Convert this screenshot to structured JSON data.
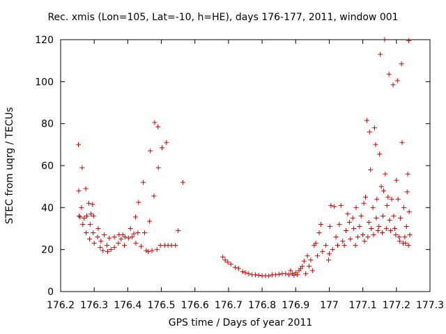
{
  "chart_data": {
    "type": "scatter",
    "title": "Rec. xmis (Lon=105, Lat=-10, h=HE), days 176-177, 2011, window 001",
    "xlabel": "GPS time / Days of year 2011",
    "ylabel": "STEC from uqrg / TECUs",
    "xlim": [
      176.2,
      177.3
    ],
    "ylim": [
      0,
      120
    ],
    "xticks": [
      "176.2",
      "176.3",
      "176.4",
      "176.5",
      "176.6",
      "176.7",
      "176.8",
      "176.9",
      "177",
      "177.1",
      "177.2",
      "177.3"
    ],
    "yticks": [
      "0",
      "20",
      "40",
      "60",
      "80",
      "100",
      "120"
    ],
    "grid": false,
    "marker": "plus",
    "color": "#cc0000",
    "series": [
      {
        "points": [
          [
            176.253,
            70
          ],
          [
            176.254,
            48
          ],
          [
            176.255,
            36
          ],
          [
            176.258,
            35.5
          ],
          [
            176.262,
            40
          ],
          [
            176.264,
            59
          ],
          [
            176.266,
            32
          ],
          [
            176.27,
            35
          ],
          [
            176.275,
            49
          ],
          [
            176.276,
            28
          ],
          [
            176.278,
            36
          ],
          [
            176.284,
            42
          ],
          [
            176.286,
            25
          ],
          [
            176.288,
            32
          ],
          [
            176.29,
            37
          ],
          [
            176.295,
            41.5
          ],
          [
            176.297,
            28
          ],
          [
            176.298,
            36
          ],
          [
            176.3,
            23
          ],
          [
            176.31,
            26
          ],
          [
            176.312,
            30
          ],
          [
            176.318,
            21
          ],
          [
            176.32,
            24
          ],
          [
            176.326,
            19.5
          ],
          [
            176.33,
            27
          ],
          [
            176.338,
            22
          ],
          [
            176.34,
            19
          ],
          [
            176.345,
            25.5
          ],
          [
            176.35,
            20
          ],
          [
            176.36,
            21
          ],
          [
            176.36,
            26
          ],
          [
            176.372,
            23
          ],
          [
            176.374,
            27
          ],
          [
            176.38,
            25
          ],
          [
            176.385,
            27
          ],
          [
            176.39,
            22
          ],
          [
            176.392,
            26
          ],
          [
            176.402,
            25.5
          ],
          [
            176.408,
            30
          ],
          [
            176.413,
            26
          ],
          [
            176.418,
            27.5
          ],
          [
            176.423,
            35.5
          ],
          [
            176.424,
            23
          ],
          [
            176.43,
            28
          ],
          [
            176.432,
            42.5
          ],
          [
            176.44,
            21.5
          ],
          [
            176.446,
            52
          ],
          [
            176.45,
            28
          ],
          [
            176.455,
            19.5
          ],
          [
            176.461,
            19
          ],
          [
            176.465,
            33.5
          ],
          [
            176.467,
            67
          ],
          [
            176.472,
            19.5
          ],
          [
            176.478,
            45.5
          ],
          [
            176.48,
            80.5
          ],
          [
            176.487,
            20
          ],
          [
            176.49,
            78.5
          ],
          [
            176.491,
            59
          ],
          [
            176.497,
            22
          ],
          [
            176.502,
            68.5
          ],
          [
            176.51,
            22
          ],
          [
            176.515,
            71
          ],
          [
            176.52,
            22
          ],
          [
            176.53,
            22
          ],
          [
            176.542,
            22
          ],
          [
            176.55,
            29
          ],
          [
            176.564,
            52
          ]
        ]
      },
      {
        "points": [
          [
            176.683,
            16.5
          ],
          [
            176.69,
            15
          ],
          [
            176.698,
            14
          ],
          [
            176.707,
            13
          ],
          [
            176.72,
            11.5
          ],
          [
            176.73,
            11
          ],
          [
            176.742,
            9.5
          ],
          [
            176.75,
            9
          ],
          [
            176.76,
            8.5
          ],
          [
            176.77,
            8
          ],
          [
            176.78,
            8
          ],
          [
            176.79,
            7.8
          ],
          [
            176.8,
            7.5
          ],
          [
            176.81,
            7.5
          ],
          [
            176.82,
            7.5
          ],
          [
            176.83,
            8
          ],
          [
            176.84,
            8
          ],
          [
            176.85,
            8.2
          ],
          [
            176.86,
            8.5
          ],
          [
            176.87,
            8.5
          ]
        ]
      },
      {
        "points": [
          [
            176.88,
            8
          ],
          [
            176.885,
            10
          ],
          [
            176.89,
            8.5
          ],
          [
            176.895,
            7.8
          ],
          [
            176.9,
            9
          ],
          [
            176.905,
            8
          ],
          [
            176.91,
            10
          ],
          [
            176.915,
            11
          ],
          [
            176.92,
            12
          ],
          [
            176.925,
            14.5
          ],
          [
            176.93,
            8.5
          ],
          [
            176.935,
            17
          ],
          [
            176.94,
            12
          ],
          [
            176.945,
            15
          ],
          [
            176.95,
            10
          ],
          [
            176.955,
            22
          ],
          [
            176.96,
            23
          ],
          [
            176.965,
            17
          ],
          [
            176.97,
            28
          ],
          [
            176.975,
            32
          ],
          [
            176.98,
            19
          ],
          [
            176.99,
            22
          ],
          [
            176.998,
            15
          ],
          [
            177.0,
            18
          ],
          [
            177.002,
            31
          ],
          [
            177.005,
            41
          ],
          [
            177.01,
            20
          ],
          [
            177.015,
            40.5
          ],
          [
            177.02,
            26
          ],
          [
            177.025,
            22
          ],
          [
            177.03,
            32
          ],
          [
            177.035,
            41
          ],
          [
            177.04,
            24
          ],
          [
            177.045,
            22
          ],
          [
            177.05,
            29
          ],
          [
            177.055,
            37
          ],
          [
            177.06,
            33
          ],
          [
            177.063,
            25
          ],
          [
            177.07,
            35
          ],
          [
            177.073,
            30
          ],
          [
            177.078,
            22
          ],
          [
            177.08,
            40
          ],
          [
            177.085,
            26
          ],
          [
            177.09,
            31
          ],
          [
            177.095,
            36
          ],
          [
            177.1,
            27
          ],
          [
            177.103,
            42
          ],
          [
            177.105,
            24
          ],
          [
            177.108,
            45
          ],
          [
            177.112,
            81.5
          ],
          [
            177.115,
            26
          ],
          [
            177.118,
            33
          ],
          [
            177.12,
            76
          ],
          [
            177.123,
            58
          ],
          [
            177.125,
            30
          ],
          [
            177.13,
            40
          ],
          [
            177.132,
            27
          ],
          [
            177.135,
            78
          ],
          [
            177.138,
            70
          ],
          [
            177.14,
            35
          ],
          [
            177.142,
            44
          ],
          [
            177.145,
            29
          ],
          [
            177.148,
            31
          ],
          [
            177.15,
            65.5
          ],
          [
            177.152,
            113
          ],
          [
            177.155,
            50
          ],
          [
            177.158,
            28
          ],
          [
            177.16,
            36
          ],
          [
            177.162,
            48
          ],
          [
            177.165,
            120
          ],
          [
            177.167,
            56
          ],
          [
            177.17,
            30
          ],
          [
            177.172,
            41
          ],
          [
            177.175,
            45
          ],
          [
            177.178,
            103.5
          ],
          [
            177.18,
            34
          ],
          [
            177.183,
            29
          ],
          [
            177.186,
            44
          ],
          [
            177.19,
            98.5
          ],
          [
            177.192,
            36
          ],
          [
            177.195,
            30
          ],
          [
            177.198,
            27
          ],
          [
            177.2,
            53
          ],
          [
            177.203,
            100.5
          ],
          [
            177.205,
            44
          ],
          [
            177.208,
            26
          ],
          [
            177.21,
            24
          ],
          [
            177.212,
            35
          ],
          [
            177.215,
            108.5
          ],
          [
            177.217,
            71
          ],
          [
            177.22,
            23
          ],
          [
            177.222,
            40
          ],
          [
            177.225,
            26
          ],
          [
            177.227,
            23
          ],
          [
            177.23,
            31
          ],
          [
            177.232,
            47.5
          ],
          [
            177.234,
            56
          ],
          [
            177.236,
            22
          ],
          [
            177.237,
            119.5
          ],
          [
            177.238,
            38
          ],
          [
            177.24,
            27
          ]
        ]
      }
    ]
  }
}
